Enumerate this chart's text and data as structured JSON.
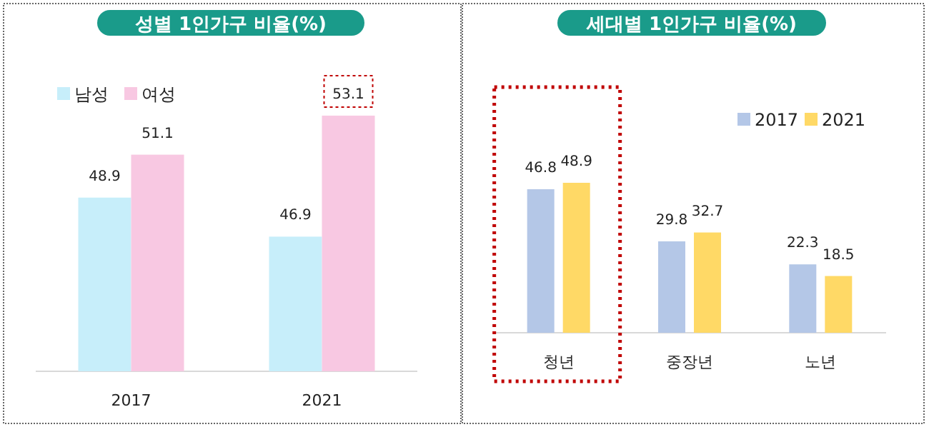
{
  "chart_data": [
    {
      "type": "bar",
      "title": "성별 1인가구 비율(%)",
      "categories": [
        "2017",
        "2021"
      ],
      "series": [
        {
          "name": "남성",
          "color": "#c7eefa",
          "values": [
            48.9,
            46.9
          ]
        },
        {
          "name": "여성",
          "color": "#f8c8e2",
          "values": [
            51.1,
            53.1
          ]
        }
      ],
      "ylim": [
        40,
        55
      ],
      "data_labels": true,
      "legend": "top left",
      "tick_labels": "x"
    },
    {
      "type": "bar",
      "title": "세대별 1인가구 비율(%)",
      "categories": [
        "청년",
        "중장년",
        "노년"
      ],
      "series": [
        {
          "name": "2017",
          "color": "#b4c7e7",
          "values": [
            46.8,
            29.8,
            22.3
          ]
        },
        {
          "name": "2021",
          "color": "#ffd966",
          "values": [
            48.9,
            32.7,
            18.5
          ]
        }
      ],
      "data_labels": true,
      "legend": "top right",
      "tick_labels": "x"
    }
  ]
}
